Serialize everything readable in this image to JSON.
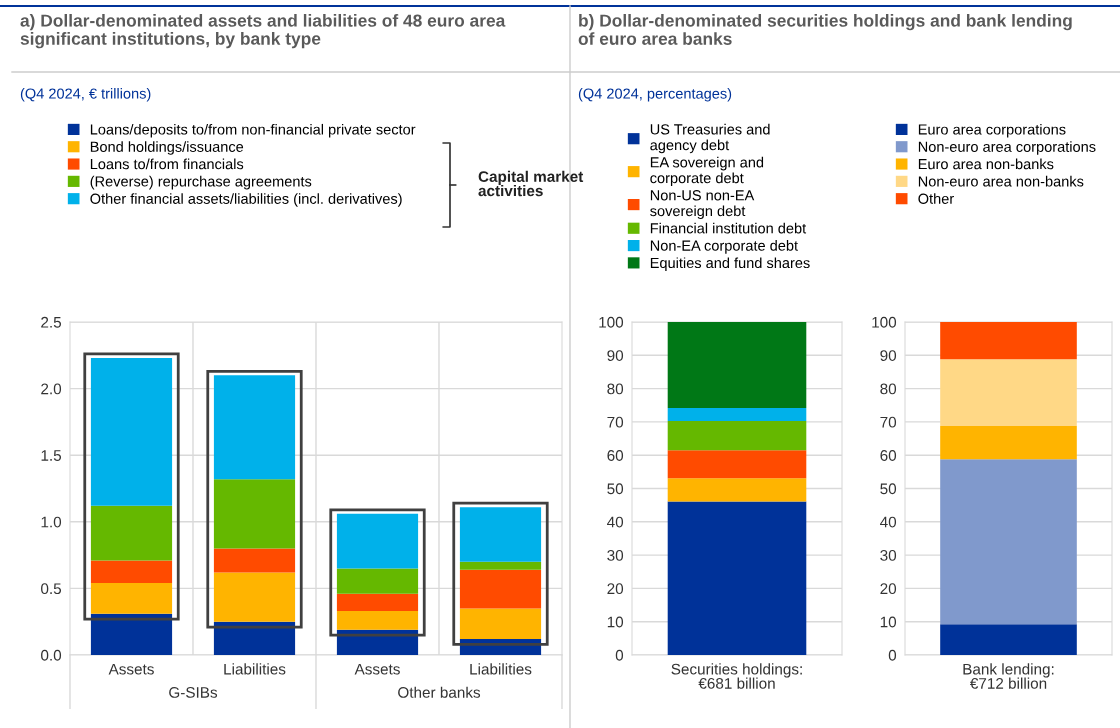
{
  "chart_data": [
    {
      "type": "bar",
      "stacked": true,
      "title": "a) Dollar-denominated assets and liabilities of 48 euro area significant institutions, by bank type",
      "subtitle": "(Q4 2024, € trillions)",
      "categories": [
        "Assets",
        "Liabilities",
        "Assets",
        "Liabilities"
      ],
      "ylim": [
        0,
        2.5
      ],
      "yticks": [
        {
          "value": 0,
          "label": "0.0"
        },
        {
          "value": 0.5,
          "label": "0.5"
        },
        {
          "value": 1,
          "label": "1.0"
        },
        {
          "value": 1.5,
          "label": "1.5"
        },
        {
          "value": 2,
          "label": "2.0"
        },
        {
          "value": 2.5,
          "label": "2.5"
        }
      ],
      "grid": true,
      "legend": "top",
      "annotations": [
        "G-SIBs",
        "Other banks",
        "Capital market activities"
      ],
      "series": [
        {
          "name": "Loans/deposits to/from non-financial private sector",
          "color": "#003299",
          "values": [
            0.31,
            0.25,
            0.19,
            0.12
          ]
        },
        {
          "name": "Bond holdings/issuance",
          "color": "#ffb400",
          "values": [
            0.23,
            0.37,
            0.14,
            0.23
          ]
        },
        {
          "name": "Loans to/from financials",
          "color": "#ff4b00",
          "values": [
            0.17,
            0.18,
            0.13,
            0.29
          ]
        },
        {
          "name": "(Reverse) repurchase agreements",
          "color": "#65b800",
          "values": [
            0.41,
            0.52,
            0.19,
            0.06
          ]
        },
        {
          "name": "Other financial assets/liabilities (incl. derivatives)",
          "color": "#00b1ea",
          "values": [
            1.11,
            0.78,
            0.41,
            0.41
          ]
        }
      ]
    },
    {
      "type": "bar",
      "stacked": true,
      "title": "b) Dollar-denominated securities holdings and bank lending of euro area banks",
      "subtitle": "(Q4 2024, percentages)",
      "categories": [
        "Securities holdings:\n€681 billion"
      ],
      "ylim": [
        0,
        100
      ],
      "yticks": [
        0,
        10,
        20,
        30,
        40,
        50,
        60,
        70,
        80,
        90,
        100
      ],
      "grid": "y",
      "legend": "top",
      "series": [
        {
          "name": "US Treasuries and\nagency debt",
          "color": "#003299",
          "values": [
            46.1
          ]
        },
        {
          "name": "EA sovereign and\ncorporate debt",
          "color": "#ffb400",
          "values": [
            7.0
          ]
        },
        {
          "name": "Non-US non-EA\nsovereign debt",
          "color": "#ff4b00",
          "values": [
            8.4
          ]
        },
        {
          "name": "Financial institution debt",
          "color": "#65b800",
          "values": [
            8.8
          ]
        },
        {
          "name": "Non-EA corporate debt",
          "color": "#00b1ea",
          "values": [
            3.9
          ]
        },
        {
          "name": "Equities and fund shares",
          "color": "#007816",
          "values": [
            25.8
          ]
        }
      ]
    },
    {
      "type": "bar",
      "stacked": true,
      "categories": [
        "Bank lending:\n€712 billion"
      ],
      "ylim": [
        0,
        100
      ],
      "yticks": [
        0,
        10,
        20,
        30,
        40,
        50,
        60,
        70,
        80,
        90,
        100
      ],
      "grid": "y",
      "legend": "top",
      "series": [
        {
          "name": "Euro area corporations",
          "color": "#003299",
          "values": [
            9.2
          ]
        },
        {
          "name": "Non-euro area corporations",
          "color": "#8099cc",
          "values": [
            49.6
          ]
        },
        {
          "name": "Euro area non-banks",
          "color": "#ffb400",
          "values": [
            10.0
          ]
        },
        {
          "name": "Non-euro area non-banks",
          "color": "#ffd886",
          "values": [
            20.0
          ]
        },
        {
          "name": "Other",
          "color": "#ff4b00",
          "values": [
            11.2
          ]
        }
      ]
    }
  ]
}
